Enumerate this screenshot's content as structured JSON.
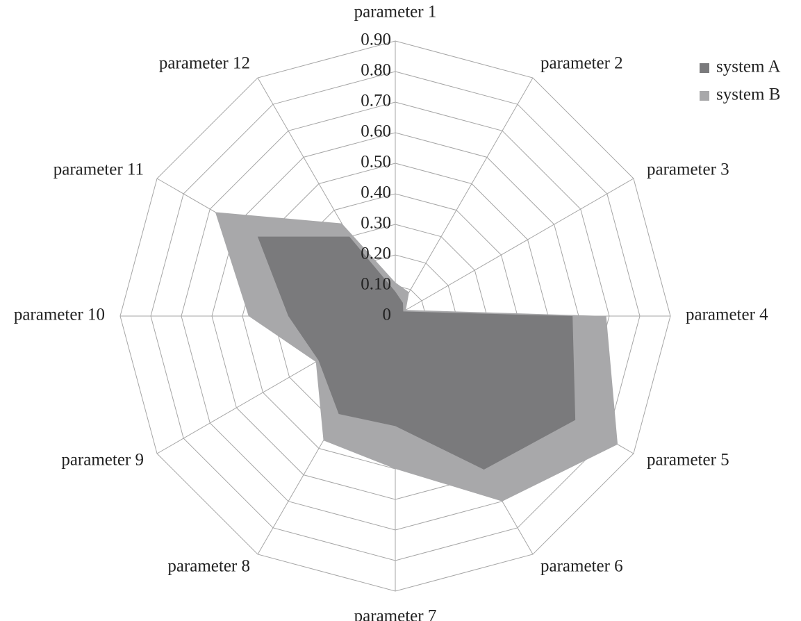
{
  "chart_data": {
    "type": "radar",
    "categories": [
      "parameter 1",
      "parameter 2",
      "parameter 3",
      "parameter 4",
      "parameter 5",
      "parameter 6",
      "parameter 7",
      "parameter 8",
      "parameter 9",
      "parameter 10",
      "parameter 11",
      "parameter 12"
    ],
    "series": [
      {
        "name": "system A",
        "color": "#7a7a7c",
        "values": [
          0.08,
          0.05,
          0.03,
          0.58,
          0.68,
          0.58,
          0.36,
          0.37,
          0.29,
          0.35,
          0.52,
          0.3
        ]
      },
      {
        "name": "system B",
        "color": "#a8a8aa",
        "values": [
          0.11,
          0.09,
          0.04,
          0.69,
          0.84,
          0.7,
          0.5,
          0.47,
          0.3,
          0.48,
          0.68,
          0.35
        ]
      }
    ],
    "ticks": [
      "0",
      "0.10",
      "0.20",
      "0.30",
      "0.40",
      "0.50",
      "0.60",
      "0.70",
      "0.80",
      "0.90"
    ],
    "rlim": [
      0,
      0.9
    ],
    "grid": true,
    "legend": "top-right"
  }
}
